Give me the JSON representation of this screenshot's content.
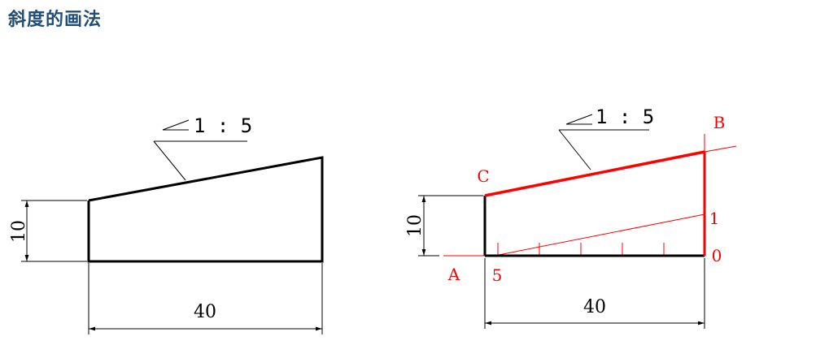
{
  "title": "斜度的画法",
  "left_figure": {
    "slope_label": "1 : 5",
    "height_dim": "10",
    "width_dim": "40"
  },
  "right_figure": {
    "slope_label": "1 : 5",
    "height_dim": "10",
    "width_dim": "40",
    "point_a": "A",
    "point_b": "B",
    "point_c": "C",
    "mark_0": "0",
    "mark_1": "1",
    "mark_5": "5"
  },
  "colors": {
    "title": "#1f4e79",
    "construction": "#ff0000",
    "outline": "#000000"
  }
}
